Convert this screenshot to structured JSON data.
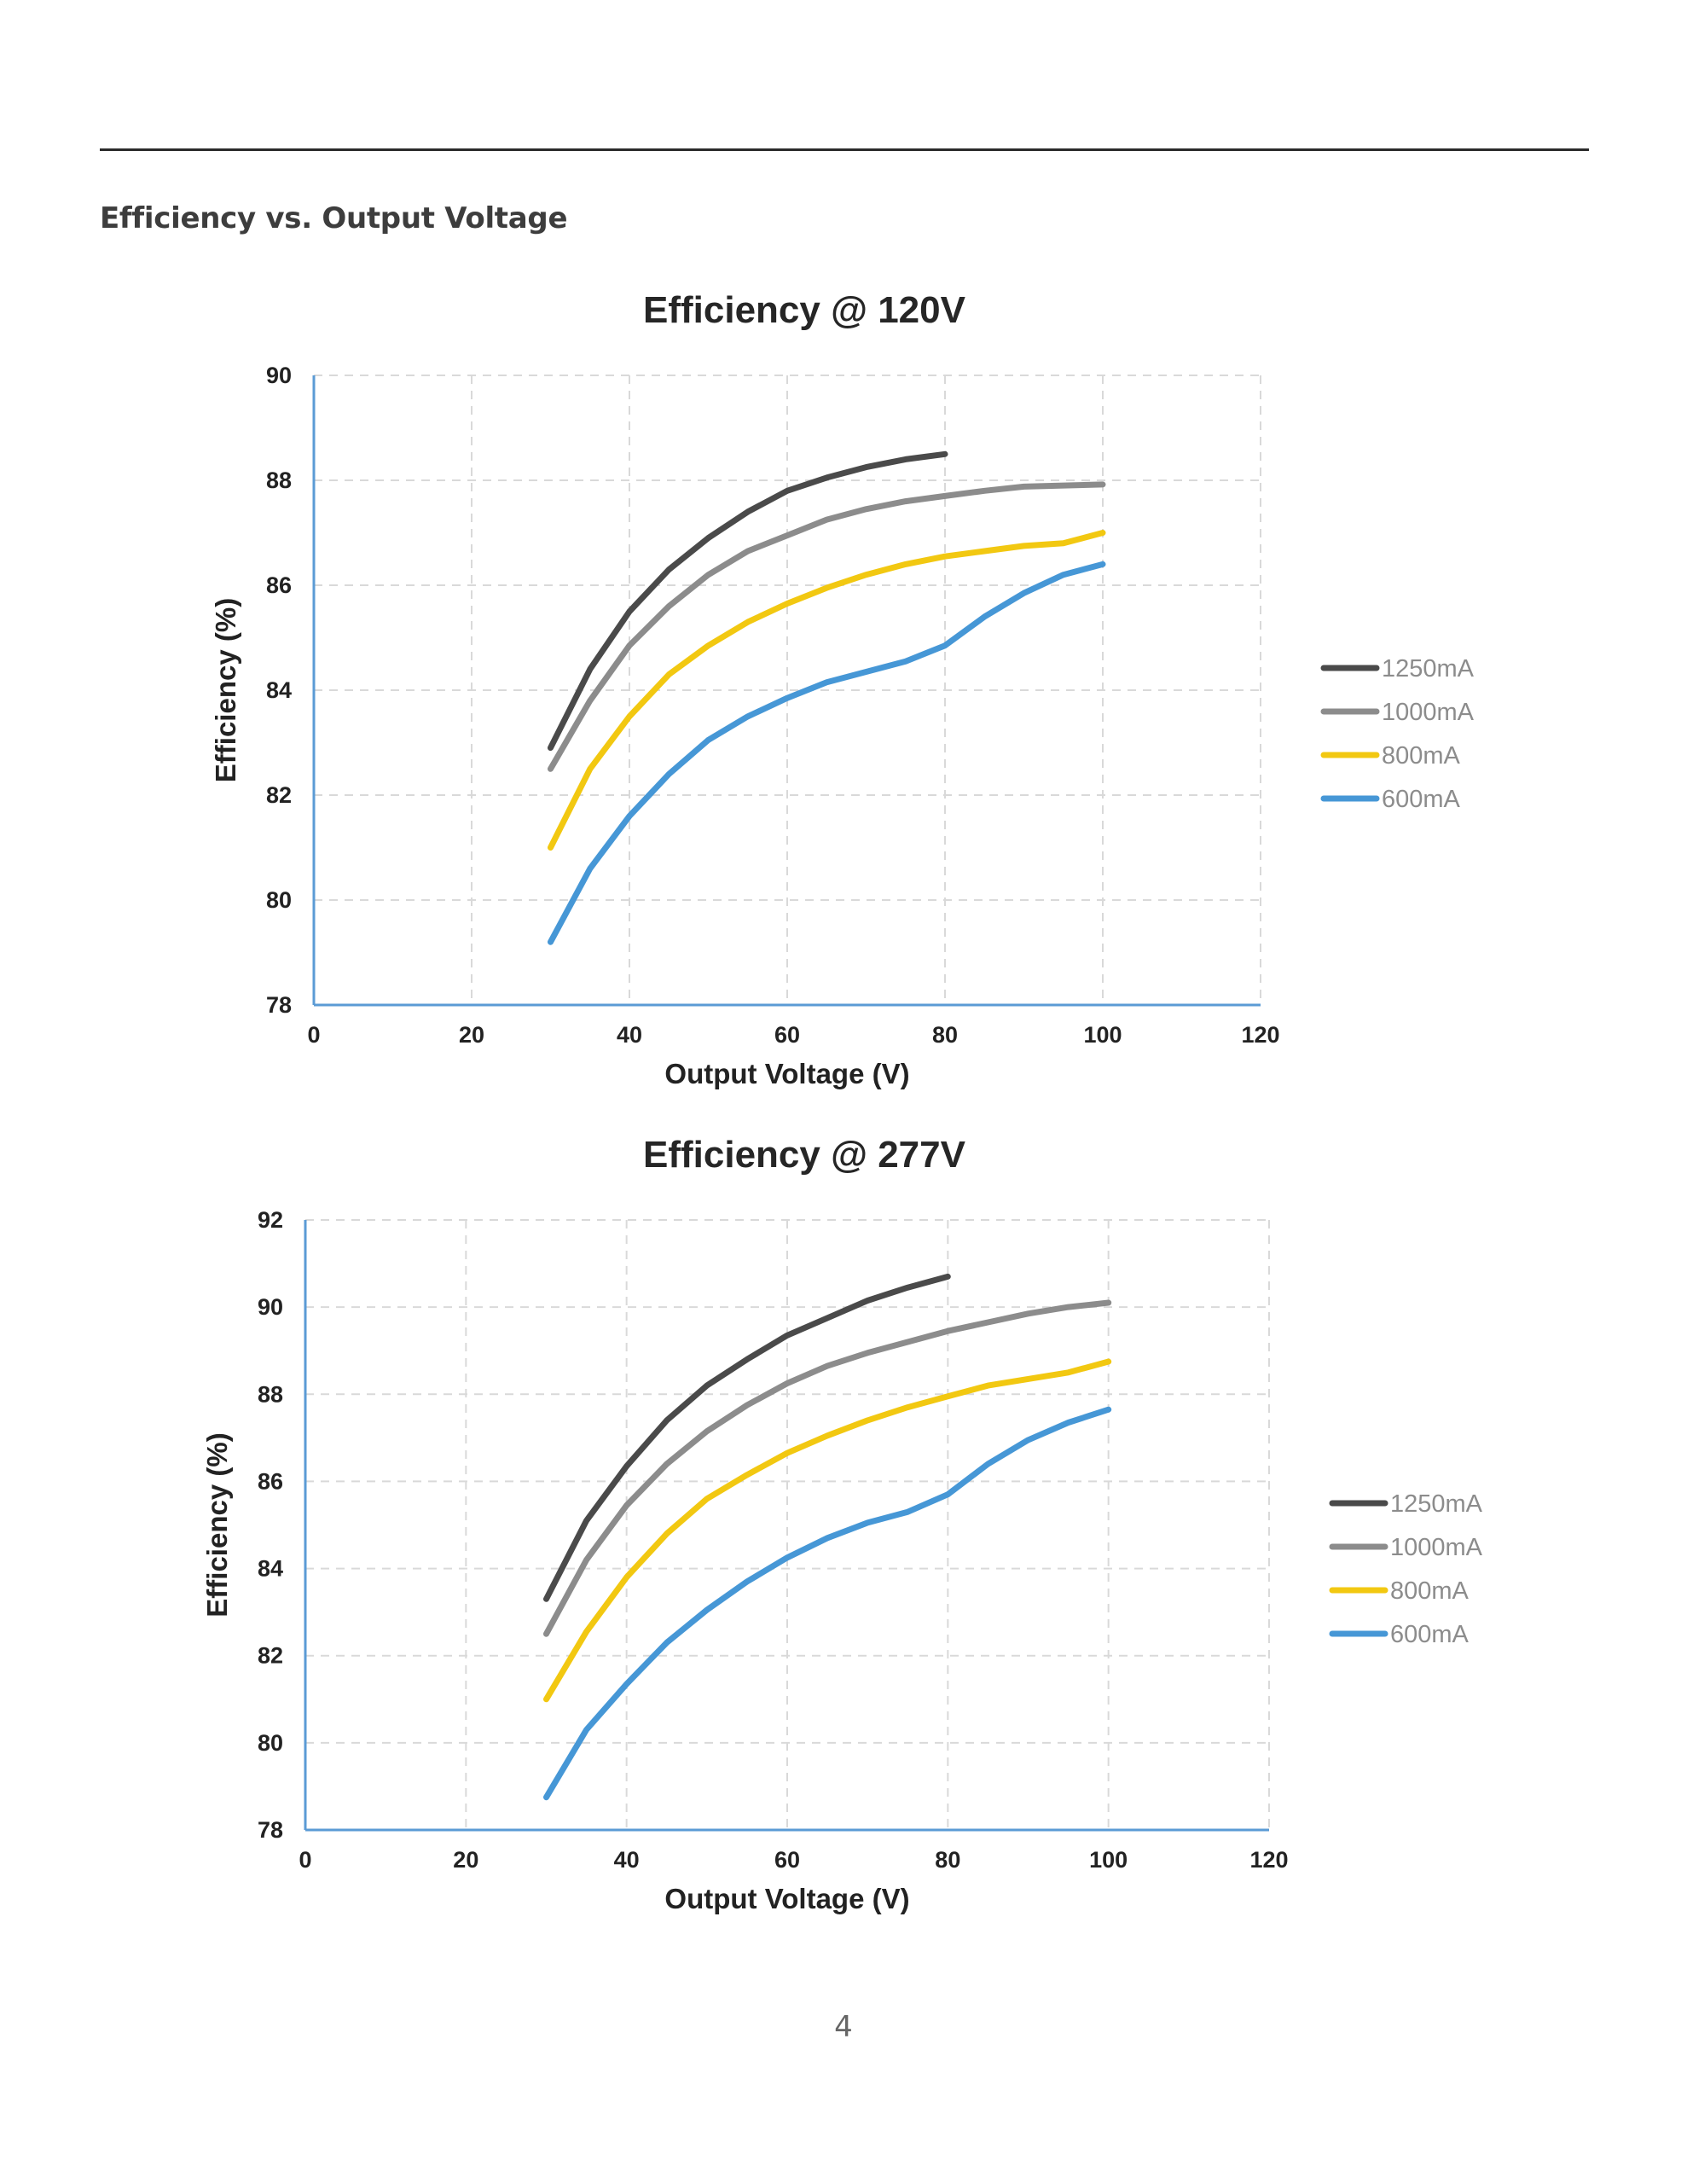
{
  "section_heading": "Efficiency vs. Output Voltage",
  "page_number": "4",
  "colors": {
    "1250mA": "#4a4a4a",
    "1000mA": "#8c8c8c",
    "800mA": "#f2c811",
    "600mA": "#4697d6",
    "axis": "#5b9bd5",
    "grid": "#d9d9d9"
  },
  "chart_data": [
    {
      "type": "line",
      "title": "Efficiency @ 120V",
      "xlabel": "Output Voltage (V)",
      "ylabel": "Efficiency (%)",
      "xlim": [
        0,
        120
      ],
      "ylim": [
        78,
        90
      ],
      "xticks": [
        0,
        20,
        40,
        60,
        80,
        100,
        120
      ],
      "yticks": [
        78,
        80,
        82,
        84,
        86,
        88,
        90
      ],
      "grid": true,
      "legend_position": "right",
      "series": [
        {
          "name": "1250mA",
          "x": [
            30,
            35,
            40,
            45,
            50,
            55,
            60,
            65,
            70,
            75,
            80
          ],
          "values": [
            82.9,
            84.4,
            85.5,
            86.3,
            86.9,
            87.4,
            87.8,
            88.05,
            88.25,
            88.4,
            88.5
          ]
        },
        {
          "name": "1000mA",
          "x": [
            30,
            35,
            40,
            45,
            50,
            55,
            60,
            65,
            70,
            75,
            80,
            85,
            90,
            95,
            100
          ],
          "values": [
            82.5,
            83.8,
            84.85,
            85.6,
            86.2,
            86.65,
            86.95,
            87.25,
            87.45,
            87.6,
            87.7,
            87.8,
            87.88,
            87.9,
            87.92
          ]
        },
        {
          "name": "800mA",
          "x": [
            30,
            35,
            40,
            45,
            50,
            55,
            60,
            65,
            70,
            75,
            80,
            85,
            90,
            95,
            100
          ],
          "values": [
            81.0,
            82.5,
            83.5,
            84.3,
            84.85,
            85.3,
            85.65,
            85.95,
            86.2,
            86.4,
            86.55,
            86.65,
            86.75,
            86.8,
            87.0
          ]
        },
        {
          "name": "600mA",
          "x": [
            30,
            35,
            40,
            45,
            50,
            55,
            60,
            65,
            70,
            75,
            80,
            85,
            90,
            95,
            100
          ],
          "values": [
            79.2,
            80.6,
            81.6,
            82.4,
            83.05,
            83.5,
            83.85,
            84.15,
            84.35,
            84.55,
            84.85,
            85.4,
            85.85,
            86.2,
            86.4
          ]
        }
      ]
    },
    {
      "type": "line",
      "title": "Efficiency @ 277V",
      "xlabel": "Output Voltage (V)",
      "ylabel": "Efficiency (%)",
      "xlim": [
        0,
        120
      ],
      "ylim": [
        78,
        92
      ],
      "xticks": [
        0,
        20,
        40,
        60,
        80,
        100,
        120
      ],
      "yticks": [
        78,
        80,
        82,
        84,
        86,
        88,
        90,
        92
      ],
      "grid": true,
      "legend_position": "right",
      "series": [
        {
          "name": "1250mA",
          "x": [
            30,
            35,
            40,
            45,
            50,
            55,
            60,
            65,
            70,
            75,
            80
          ],
          "values": [
            83.3,
            85.1,
            86.35,
            87.4,
            88.2,
            88.8,
            89.35,
            89.75,
            90.15,
            90.45,
            90.7
          ]
        },
        {
          "name": "1000mA",
          "x": [
            30,
            35,
            40,
            45,
            50,
            55,
            60,
            65,
            70,
            75,
            80,
            85,
            90,
            95,
            100
          ],
          "values": [
            82.5,
            84.2,
            85.45,
            86.4,
            87.15,
            87.75,
            88.25,
            88.65,
            88.95,
            89.2,
            89.45,
            89.65,
            89.85,
            90.0,
            90.1
          ]
        },
        {
          "name": "800mA",
          "x": [
            30,
            35,
            40,
            45,
            50,
            55,
            60,
            65,
            70,
            75,
            80,
            85,
            90,
            95,
            100
          ],
          "values": [
            81.0,
            82.55,
            83.8,
            84.8,
            85.6,
            86.15,
            86.65,
            87.05,
            87.4,
            87.7,
            87.95,
            88.2,
            88.35,
            88.5,
            88.75
          ]
        },
        {
          "name": "600mA",
          "x": [
            30,
            35,
            40,
            45,
            50,
            55,
            60,
            65,
            70,
            75,
            80,
            85,
            90,
            95,
            100
          ],
          "values": [
            78.75,
            80.3,
            81.35,
            82.3,
            83.05,
            83.7,
            84.25,
            84.7,
            85.05,
            85.3,
            85.7,
            86.4,
            86.95,
            87.35,
            87.65
          ]
        }
      ]
    }
  ]
}
